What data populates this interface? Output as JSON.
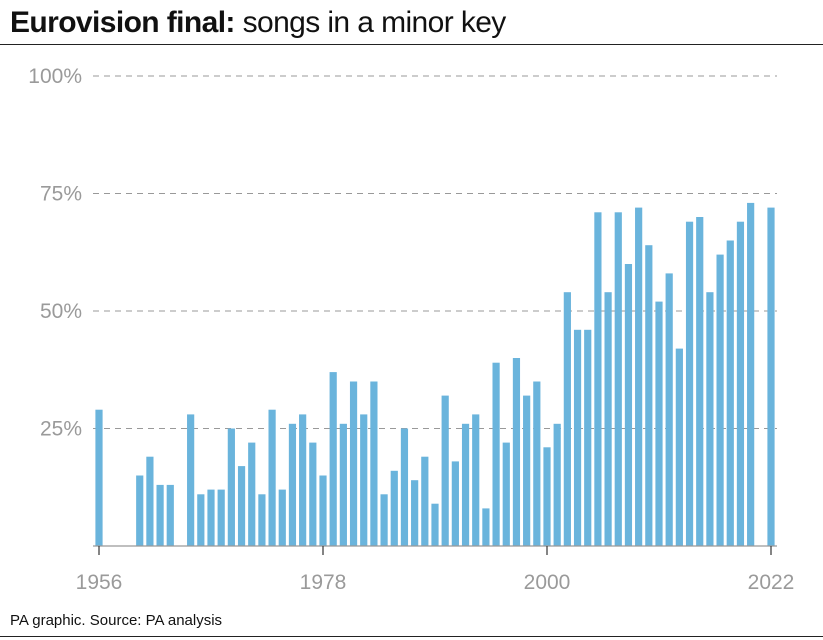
{
  "title": {
    "bold": "Eurovision final:",
    "rest": "songs in a minor key"
  },
  "source": "PA graphic. Source: PA analysis",
  "chart_data": {
    "type": "bar",
    "title": "Eurovision final: songs in a minor key",
    "xlabel": "",
    "ylabel": "",
    "ylim": [
      0,
      100
    ],
    "y_ticks": [
      {
        "value": 25,
        "label": "25%"
      },
      {
        "value": 50,
        "label": "50%"
      },
      {
        "value": 75,
        "label": "75%"
      },
      {
        "value": 100,
        "label": "100%"
      }
    ],
    "x_tick_labels": [
      "1956",
      "1978",
      "2000",
      "2022"
    ],
    "grid": true,
    "bar_color": "#6ab4dc",
    "grid_color": "#999999",
    "axis_color": "#999999",
    "categories": [
      1956,
      1957,
      1958,
      1959,
      1960,
      1961,
      1962,
      1963,
      1964,
      1965,
      1966,
      1967,
      1968,
      1969,
      1970,
      1971,
      1972,
      1973,
      1974,
      1975,
      1976,
      1977,
      1978,
      1979,
      1980,
      1981,
      1982,
      1983,
      1984,
      1985,
      1986,
      1987,
      1988,
      1989,
      1990,
      1991,
      1992,
      1993,
      1994,
      1995,
      1996,
      1997,
      1998,
      1999,
      2000,
      2001,
      2002,
      2003,
      2004,
      2005,
      2006,
      2007,
      2008,
      2009,
      2010,
      2011,
      2012,
      2013,
      2014,
      2015,
      2016,
      2017,
      2018,
      2019,
      2020,
      2021,
      2022
    ],
    "values": [
      29,
      null,
      null,
      null,
      15,
      19,
      13,
      13,
      null,
      28,
      11,
      12,
      12,
      25,
      17,
      22,
      11,
      29,
      12,
      26,
      28,
      22,
      15,
      37,
      26,
      35,
      28,
      35,
      11,
      16,
      25,
      14,
      19,
      9,
      32,
      18,
      26,
      28,
      8,
      39,
      22,
      40,
      32,
      35,
      21,
      26,
      54,
      46,
      46,
      71,
      54,
      71,
      60,
      72,
      64,
      52,
      58,
      42,
      69,
      70,
      54,
      62,
      65,
      69,
      73,
      null,
      72
    ]
  }
}
